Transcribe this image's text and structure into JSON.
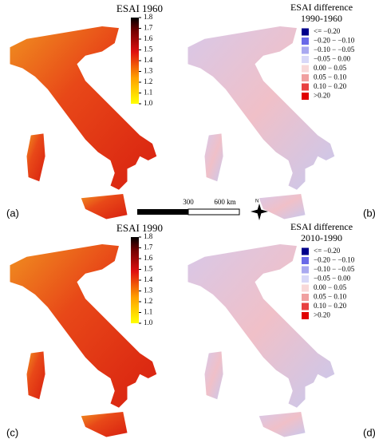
{
  "panels": [
    {
      "label": "(a)",
      "title": "ESAI 1960",
      "colorbar": {
        "ticks": [
          {
            "value": 1,
            "label": "1.0"
          },
          1.1,
          1.2,
          1.3,
          1.4,
          1.5,
          1.6,
          1.7,
          1.8
        ]
      }
    },
    {
      "label": "(b)",
      "title": [
        "ESAI difference",
        "1990-1960"
      ],
      "legend": [
        {
          "label": "<= −0.20",
          "color": "#00008b"
        },
        {
          "label": "−0.20 − −0.10",
          "color": "#6a6ae8"
        },
        {
          "label": "−0.10 − −0.05",
          "color": "#a9a9f0"
        },
        {
          "label": "−0.05 − 0.00",
          "color": "#d8d8f8"
        },
        {
          "label": "0.00 − 0.05",
          "color": "#f8d8d8"
        },
        {
          "label": "0.05 − 0.10",
          "color": "#f0a0a0"
        },
        {
          "label": "0.10 − 0.20",
          "color": "#e84040"
        },
        {
          "label": ">0.20",
          "color": "#e00000"
        }
      ]
    },
    {
      "label": "(c)",
      "title": "ESAI 1990",
      "colorbar": {
        "ticks": [
          {
            "value": 1,
            "label": "1.0"
          },
          1.1,
          1.2,
          1.3,
          1.4,
          1.5,
          1.6,
          1.7,
          1.8
        ]
      }
    },
    {
      "label": "(d)",
      "title": [
        "ESAI difference",
        "2010-1990"
      ],
      "legend": [
        {
          "label": "<= −0.20",
          "color": "#00008b"
        },
        {
          "label": "−0.20 − −0.10",
          "color": "#6a6ae8"
        },
        {
          "label": "−0.10 − −0.05",
          "color": "#a9a9f0"
        },
        {
          "label": "−0.05 − 0.00",
          "color": "#d8d8f8"
        },
        {
          "label": "0.00 − 0.05",
          "color": "#f8d8d8"
        },
        {
          "label": "0.05 − 0.10",
          "color": "#f0a0a0"
        },
        {
          "label": "0.10 − 0.20",
          "color": "#e84040"
        },
        {
          "label": ">0.20",
          "color": "#e00000"
        }
      ]
    }
  ],
  "scale_bar": {
    "labels": [
      "300",
      "600 km"
    ]
  },
  "north_arrow": "N"
}
